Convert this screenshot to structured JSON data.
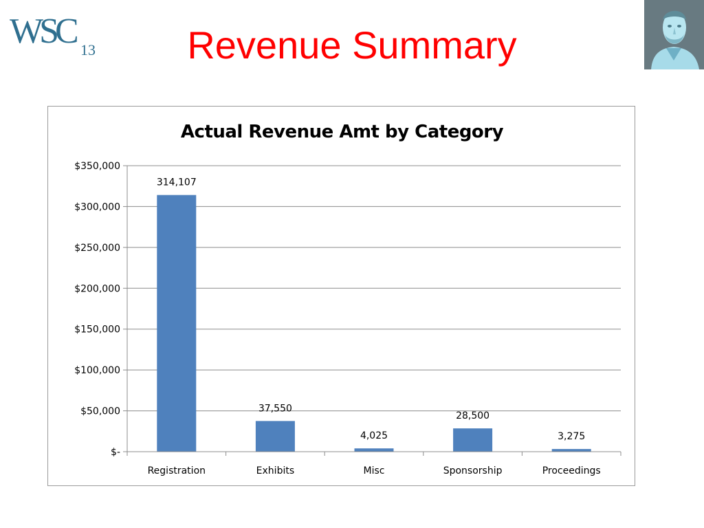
{
  "slide": {
    "title": "Revenue Summary",
    "logo_text": "WSC",
    "logo_year": "13",
    "title_color": "#ff0000"
  },
  "chart_data": {
    "type": "bar",
    "title": "Actual Revenue Amt by Category",
    "categories": [
      "Registration",
      "Exhibits",
      "Misc",
      "Sponsorship",
      "Proceedings"
    ],
    "values": [
      314107,
      37550,
      4025,
      28500,
      3275
    ],
    "data_labels": [
      "314,107",
      "37,550",
      "4,025",
      "28,500",
      "3,275"
    ],
    "ylim": [
      0,
      350000
    ],
    "yticks": [
      0,
      50000,
      100000,
      150000,
      200000,
      250000,
      300000,
      350000
    ],
    "ytick_labels": [
      "$-",
      "$50,000",
      "$100,000",
      "$150,000",
      "$200,000",
      "$250,000",
      "$300,000",
      "$350,000"
    ],
    "xlabel": "",
    "ylabel": "",
    "grid": true,
    "bar_color": "#4f81bd"
  }
}
